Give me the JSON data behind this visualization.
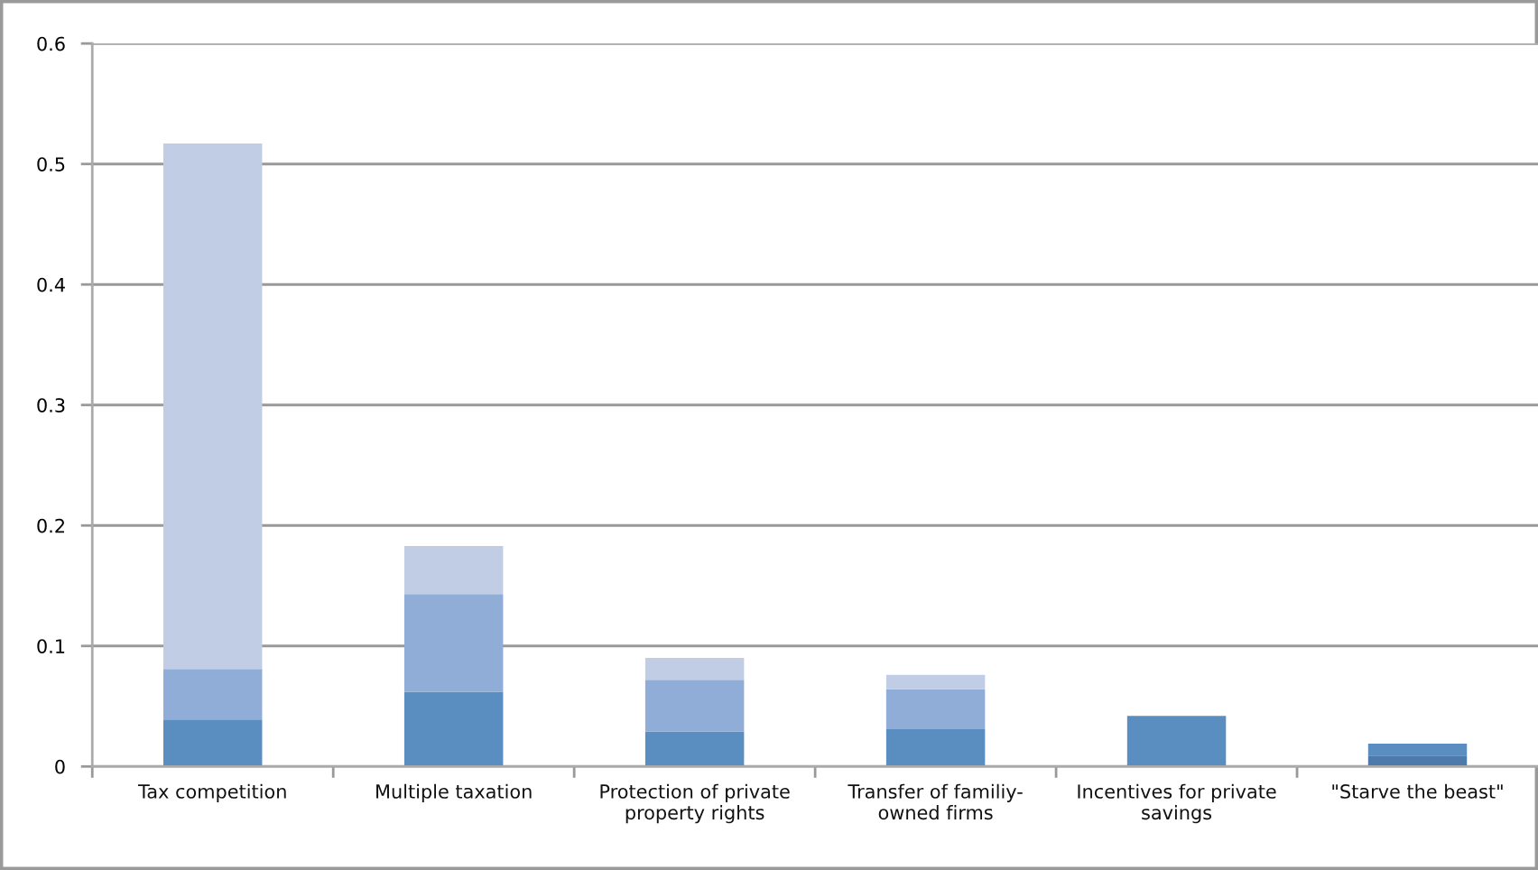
{
  "chart_data": {
    "type": "bar",
    "stacked": true,
    "categories": [
      "Tax competition",
      "Multiple taxation",
      "Protection of private\nproperty rights",
      "Transfer of familiy-\nowned firms",
      "Incentives for private\nsavings",
      "\"Starve the beast\""
    ],
    "series": [
      {
        "color": "#4d7aab",
        "values": [
          null,
          null,
          null,
          null,
          null,
          0.009
        ]
      },
      {
        "color": "#5a8ec0",
        "values": [
          0.039,
          0.062,
          0.029,
          0.031,
          0.042,
          0.01
        ]
      },
      {
        "color": "#8fadd6",
        "values": [
          0.042,
          0.081,
          0.043,
          0.033,
          null,
          null
        ]
      },
      {
        "color": "#c1cde5",
        "values": [
          0.436,
          0.04,
          0.018,
          0.012,
          null,
          null
        ]
      }
    ],
    "ylim": [
      0,
      0.6
    ],
    "yticks": [
      0,
      0.1,
      0.2,
      0.3,
      0.4,
      0.5,
      0.6
    ],
    "grid": "y",
    "legend": false
  }
}
